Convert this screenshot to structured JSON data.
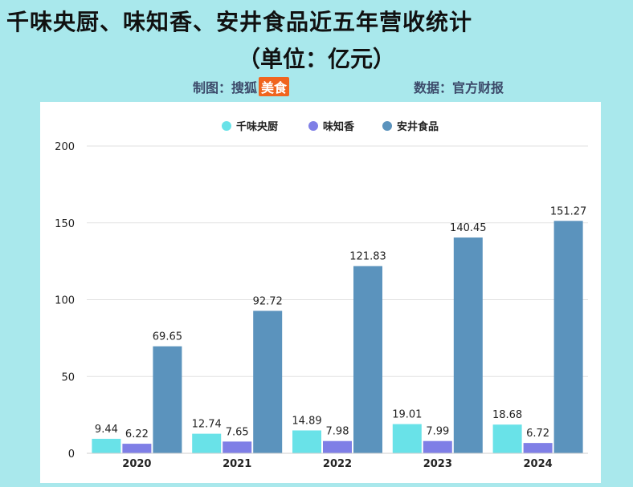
{
  "title_line1": "千味央厨、味知香、安井食品近五年营收统计",
  "title_line2": "（单位：亿元）",
  "credit": {
    "maker_label": "制图：搜狐",
    "maker_brand": "美食",
    "source_label": "数据：官方财报"
  },
  "colors": {
    "series": [
      "#69e2e8",
      "#7f7fe6",
      "#5b93bd"
    ],
    "background": "#a9e8ec",
    "panel": "#ffffff"
  },
  "chart_data": {
    "type": "bar",
    "title": "千味央厨、味知香、安井食品近五年营收统计",
    "xlabel": "",
    "ylabel": "",
    "categories": [
      "2020",
      "2021",
      "2022",
      "2023",
      "2024"
    ],
    "series": [
      {
        "name": "千味央厨",
        "values": [
          9.44,
          12.74,
          14.89,
          19.01,
          18.68
        ]
      },
      {
        "name": "味知香",
        "values": [
          6.22,
          7.65,
          7.98,
          7.99,
          6.72
        ]
      },
      {
        "name": "安井食品",
        "values": [
          69.65,
          92.72,
          121.83,
          140.45,
          151.27
        ]
      }
    ],
    "ylim": [
      0,
      200
    ],
    "yticks": [
      0,
      50,
      100,
      150,
      200
    ],
    "grid": true,
    "legend_position": "top-center"
  }
}
